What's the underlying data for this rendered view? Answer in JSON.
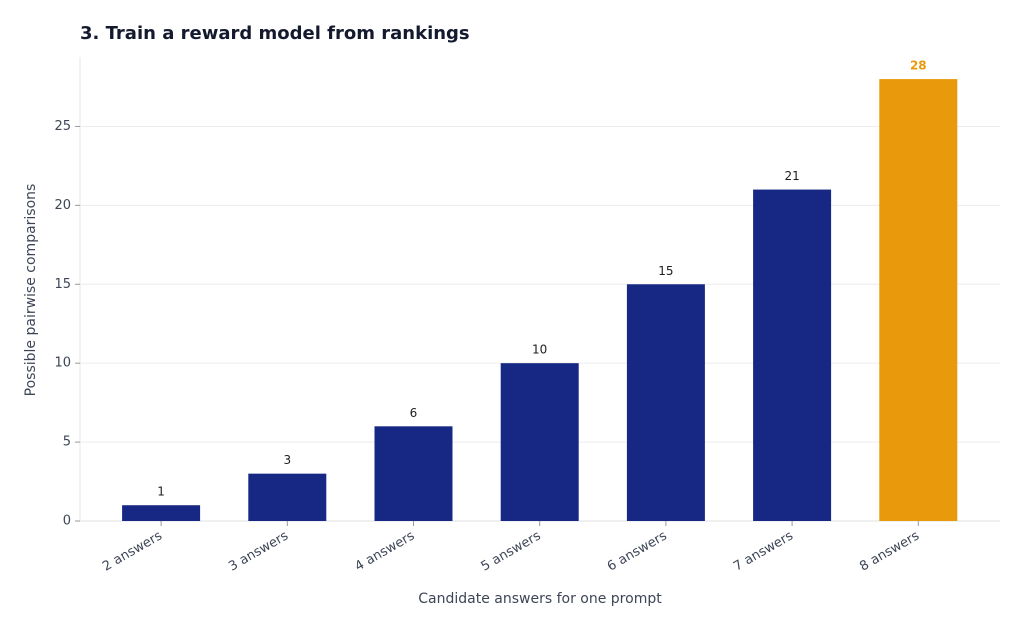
{
  "chart_data": {
    "type": "bar",
    "title": "3. Train a reward model from rankings",
    "x_label": "Candidate answers for one prompt",
    "y_label": "Possible pairwise comparisons",
    "categories": [
      "2 answers",
      "3 answers",
      "4 answers",
      "5 answers",
      "6 answers",
      "7 answers",
      "8 answers"
    ],
    "values": [
      1,
      3,
      6,
      10,
      15,
      21,
      28
    ],
    "colors": [
      "#172884",
      "#172884",
      "#172884",
      "#172884",
      "#172884",
      "#172884",
      "#e99a0c"
    ],
    "ylim": [
      0,
      29.4
    ],
    "yticks": [
      0,
      5,
      10,
      15,
      20,
      25
    ],
    "grid": true
  }
}
